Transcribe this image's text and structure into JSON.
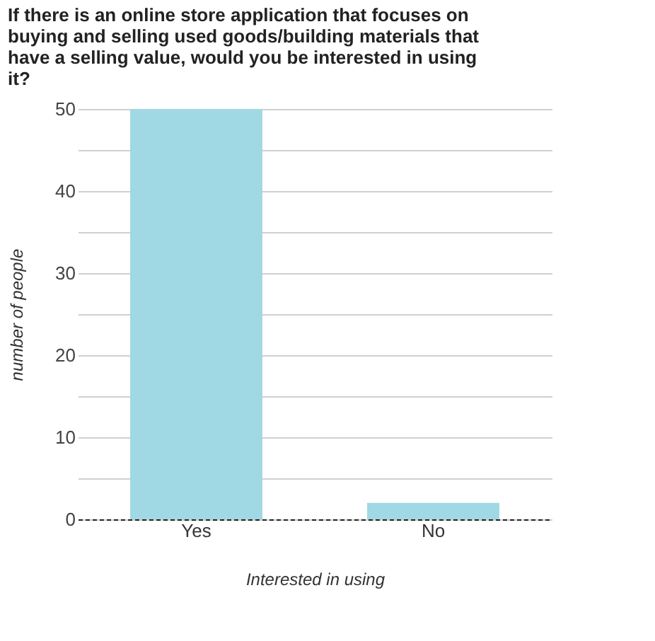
{
  "chart_data": {
    "type": "bar",
    "title": "If there is an online store application that focuses on buying and selling used goods/building materials that have a selling value, would you be interested in using it?",
    "xlabel": "Interested in using",
    "ylabel": "number of people",
    "categories": [
      "Yes",
      "No"
    ],
    "values": [
      50,
      2
    ],
    "color": "#a0d8e3",
    "ylim": [
      0,
      50
    ],
    "yticks": [
      0,
      {
        "value": 5,
        "label": null
      },
      10,
      {
        "value": 15,
        "label": null
      },
      20,
      {
        "value": 25,
        "label": null
      },
      30,
      {
        "value": 35,
        "label": null
      },
      40,
      {
        "value": 45,
        "label": null
      },
      50
    ],
    "grid": "y"
  }
}
